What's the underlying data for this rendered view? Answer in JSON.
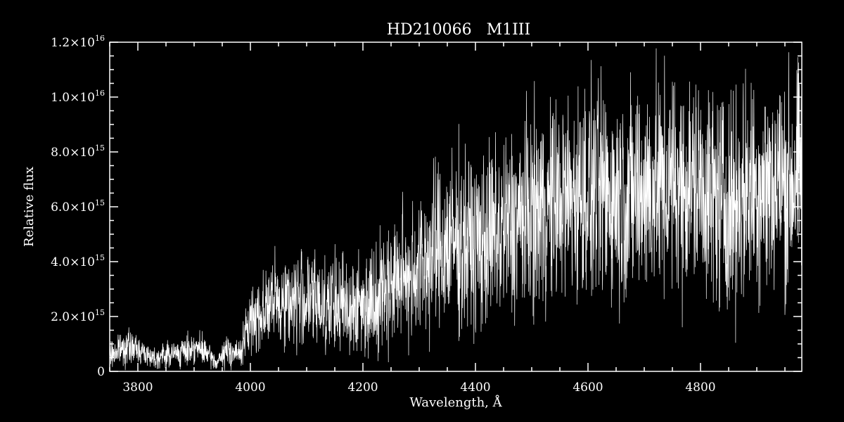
{
  "colors": {
    "background": "#000000",
    "foreground": "#ffffff"
  },
  "chart_data": {
    "type": "line",
    "title": "HD210066   M1III",
    "xlabel": "Wavelength, Å",
    "ylabel": "Relative flux",
    "xlim": [
      3750,
      4980
    ],
    "ylim": [
      0,
      1.2e+16
    ],
    "grid": false,
    "x_ticks": [
      3800,
      4000,
      4200,
      4400,
      4600,
      4800
    ],
    "y_ticks": [
      {
        "value": 0,
        "mant": "0",
        "exp": ""
      },
      {
        "value": 2000000000000000.0,
        "mant": "2.0×10",
        "exp": "15"
      },
      {
        "value": 4000000000000000.0,
        "mant": "4.0×10",
        "exp": "15"
      },
      {
        "value": 6000000000000000.0,
        "mant": "6.0×10",
        "exp": "15"
      },
      {
        "value": 8000000000000000.0,
        "mant": "8.0×10",
        "exp": "15"
      },
      {
        "value": 1e+16,
        "mant": "1.0×10",
        "exp": "16"
      },
      {
        "value": 1.2e+16,
        "mant": "1.2×10",
        "exp": "16"
      }
    ],
    "series": [
      {
        "x": [
          3750,
          3780,
          3800,
          3830,
          3850,
          3880,
          3900,
          3920,
          3940,
          3960,
          3980,
          4000,
          4030,
          4060,
          4100,
          4150,
          4200,
          4250,
          4300,
          4330,
          4370,
          4400,
          4440,
          4480,
          4500,
          4550,
          4600,
          4650,
          4700,
          4750,
          4800,
          4850,
          4900,
          4950,
          4980
        ],
        "y": [
          600000000000000.0,
          900000000000000.0,
          800000000000000.0,
          500000000000000.0,
          600000000000000.0,
          700000000000000.0,
          900000000000000.0,
          700000000000000.0,
          300000000000000.0,
          800000000000000.0,
          600000000000000.0,
          1800000000000000.0,
          2400000000000000.0,
          2600000000000000.0,
          2600000000000000.0,
          2400000000000000.0,
          2400000000000000.0,
          3200000000000000.0,
          3800000000000000.0,
          4400000000000000.0,
          4800000000000000.0,
          4600000000000000.0,
          5000000000000000.0,
          5600000000000000.0,
          5800000000000000.0,
          6200000000000000.0,
          6600000000000000.0,
          6400000000000000.0,
          6600000000000000.0,
          6800000000000000.0,
          6800000000000000.0,
          6000000000000000.0,
          6800000000000000.0,
          6800000000000000.0,
          7200000000000000.0
        ],
        "spread": [
          400000000000000.0,
          500000000000000.0,
          400000000000000.0,
          300000000000000.0,
          400000000000000.0,
          400000000000000.0,
          500000000000000.0,
          400000000000000.0,
          200000000000000.0,
          500000000000000.0,
          400000000000000.0,
          1000000000000000.0,
          1200000000000000.0,
          1400000000000000.0,
          1500000000000000.0,
          1500000000000000.0,
          1500000000000000.0,
          1800000000000000.0,
          2200000000000000.0,
          2500000000000000.0,
          2700000000000000.0,
          2600000000000000.0,
          2800000000000000.0,
          2900000000000000.0,
          3000000000000000.0,
          3000000000000000.0,
          3200000000000000.0,
          3200000000000000.0,
          3200000000000000.0,
          3200000000000000.0,
          3200000000000000.0,
          3200000000000000.0,
          3300000000000000.0,
          3400000000000000.0,
          3200000000000000.0
        ]
      }
    ]
  }
}
